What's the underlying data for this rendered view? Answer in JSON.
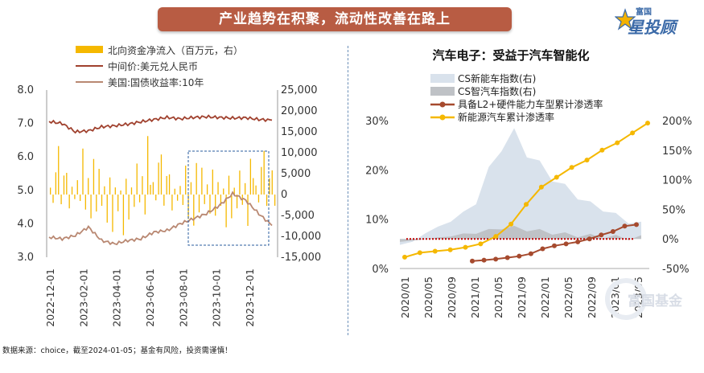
{
  "banner": {
    "title": "产业趋势在积聚，流动性改善在路上"
  },
  "logo": {
    "top": "富国",
    "main": "星投顾"
  },
  "footer": {
    "text": "数据来源：choice，截至2024-01-05；基金有风险，投资需谨慎！"
  },
  "watermark": {
    "text": "富国基金"
  },
  "colors": {
    "north": "#f5b800",
    "cny": "#a0412e",
    "ust": "#b98872",
    "ev": "#f5b800",
    "l2": "#a64a2e",
    "cs_ev": "#d9e2ec",
    "cs_smart": "#bfc2c6",
    "ref": "#c00000"
  },
  "chart_data": [
    {
      "type": "line",
      "title": "",
      "legend": [
        "北向资金净流入（百万元，右）",
        "中间价:美元兑人民币",
        "美国:国债收益率:10年"
      ],
      "ylim_left": [
        3.0,
        8.0
      ],
      "yticks_left": [
        "8.0",
        "7.0",
        "6.0",
        "5.0",
        "4.0",
        "3.0"
      ],
      "ylim_right": [
        -15000,
        25000
      ],
      "yticks_right": [
        "25,000",
        "20,000",
        "15,000",
        "10,000",
        "5,000",
        "0",
        "-5,000",
        "-10,000",
        "-15,000"
      ],
      "x_ticks": [
        "2022-12-01",
        "2023-02-01",
        "2023-04-01",
        "2023-06-01",
        "2023-08-01",
        "2023-10-01",
        "2023-12-01"
      ],
      "series": [
        {
          "name": "中间价:美元兑人民币",
          "values": [
            7.06,
            7.0,
            6.75,
            6.78,
            6.9,
            6.93,
            6.98,
            7.05,
            7.12,
            7.18,
            7.14,
            7.18,
            7.2,
            7.18,
            7.16,
            7.17,
            7.12,
            7.1
          ]
        },
        {
          "name": "美国:国债收益率:10年",
          "values": [
            3.6,
            3.55,
            3.65,
            3.9,
            3.5,
            3.4,
            3.5,
            3.55,
            3.75,
            3.8,
            4.0,
            4.15,
            4.3,
            4.55,
            4.9,
            4.7,
            4.3,
            3.95
          ]
        },
        {
          "name": "北向资金净流入（百万元，右）",
          "values": [
            3000,
            -2000,
            8000,
            12000,
            -3000,
            5000,
            6000,
            -4000,
            2000,
            -1500,
            3500,
            -2500,
            11000,
            -6000,
            4000,
            -8000,
            9000,
            -5000,
            7000,
            -3000,
            2500,
            -7000,
            6000,
            -9000,
            3000,
            -4000,
            1500,
            -10000,
            5000,
            -6500,
            2000,
            -3500,
            8000,
            -2500,
            4500,
            -7500,
            14000,
            4000
          ]
        }
      ],
      "highlight_box": "2023-08 to 2024-01"
    },
    {
      "type": "line",
      "title": "汽车电子：受益于汽车智能化",
      "legend": [
        "CS新能车指数(右)",
        "CS智汽车指数(右)",
        "具备L2+硬件能力车型累计渗透率",
        "新能源汽车累计渗透率"
      ],
      "ylim_left": [
        0,
        30
      ],
      "yticks_left": [
        "30%",
        "20%",
        "10%",
        "0%"
      ],
      "ylim_right": [
        -50,
        200
      ],
      "yticks_right": [
        "200%",
        "150%",
        "100%",
        "50%",
        "0%",
        "-50%"
      ],
      "x_ticks": [
        "2020/01",
        "2020/05",
        "2020/09",
        "2021/01",
        "2021/05",
        "2021/09",
        "2022/01",
        "2022/05",
        "2022/09",
        "2023/01",
        "2023/05"
      ],
      "series": [
        {
          "name": "CS新能车指数(右)",
          "values": [
            -10,
            -5,
            10,
            20,
            30,
            45,
            60,
            120,
            150,
            185,
            140,
            130,
            100,
            90,
            70,
            60,
            50,
            40,
            30,
            25
          ]
        },
        {
          "name": "CS智汽车指数(右)",
          "values": [
            -5,
            -3,
            0,
            2,
            5,
            8,
            10,
            15,
            18,
            20,
            15,
            14,
            10,
            8,
            6,
            5,
            4,
            3,
            2,
            2
          ]
        },
        {
          "name": "具备L2+硬件能力车型累计渗透率",
          "values": [
            1.5,
            1.7,
            1.9,
            2.2,
            2.5,
            3.0,
            4.0,
            4.6,
            5.0,
            5.4,
            6.0,
            6.8,
            7.5,
            8.6,
            8.9
          ]
        },
        {
          "name": "新能源汽车累计渗透率",
          "values": [
            2.3,
            3.2,
            3.5,
            3.8,
            4.3,
            5.0,
            6.5,
            9.0,
            13.0,
            16.5,
            18.5,
            20.5,
            22.0,
            24.0,
            25.5,
            27.5,
            29.5
          ]
        }
      ],
      "reference_line": 0
    }
  ]
}
